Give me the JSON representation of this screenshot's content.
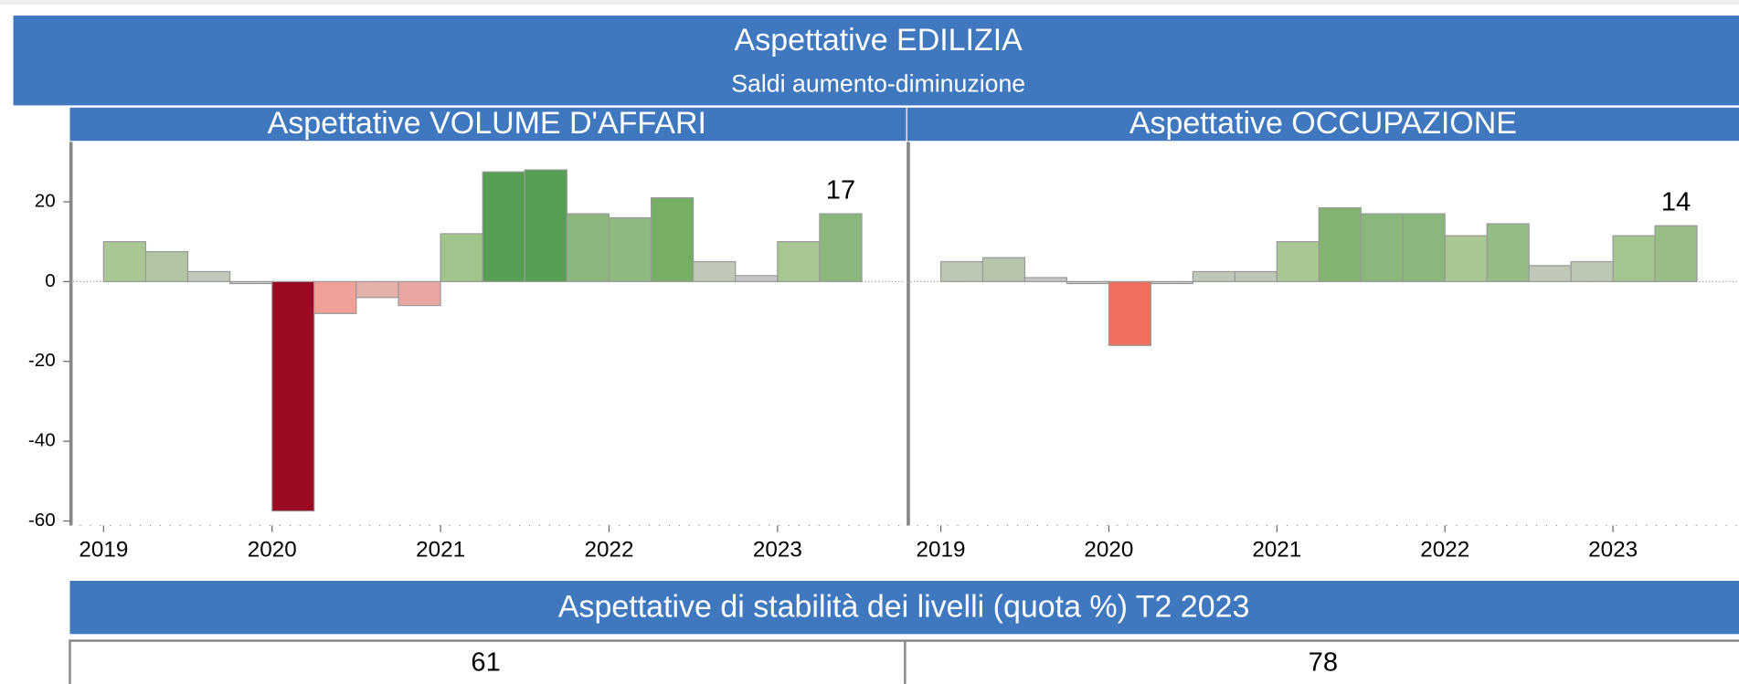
{
  "header": {
    "title": "Aspettative EDILIZIA",
    "subtitle": "Saldi aumento-diminuzione"
  },
  "chart_data": [
    {
      "type": "bar",
      "title": "Aspettative VOLUME D'AFFARI",
      "x": [
        2019,
        2019.25,
        2019.5,
        2019.75,
        2020,
        2020.25,
        2020.5,
        2020.75,
        2021,
        2021.25,
        2021.5,
        2021.75,
        2022,
        2022.25,
        2022.5,
        2022.75,
        2023,
        2023.25
      ],
      "values": [
        10,
        7.5,
        2.5,
        -0.5,
        -57.5,
        -8,
        -4,
        -6,
        12,
        27.5,
        28,
        17,
        16,
        21,
        5,
        1.5,
        10,
        17
      ],
      "colors": [
        "#a9c792",
        "#b3c6a3",
        "#c3c8bd",
        "#c7c7c7",
        "#9b0a23",
        "#f0a097",
        "#e4b1ab",
        "#e8a7a0",
        "#a0c58b",
        "#559e52",
        "#559e52",
        "#8db77b",
        "#8fb97d",
        "#77ae66",
        "#c0c8b8",
        "#c7c7c7",
        "#a9c792",
        "#8ab87a"
      ],
      "xlim": [
        2018.8,
        2023.75
      ],
      "xticks": [
        2019,
        2020,
        2021,
        2022,
        2023
      ],
      "ylim": [
        -60,
        35
      ],
      "yticks": [
        -60,
        -40,
        -20,
        0,
        20
      ]
    },
    {
      "type": "bar",
      "title": "Aspettative OCCUPAZIONE",
      "x": [
        2019,
        2019.25,
        2019.5,
        2019.75,
        2020,
        2020.25,
        2020.5,
        2020.75,
        2021,
        2021.25,
        2021.5,
        2021.75,
        2022,
        2022.25,
        2022.5,
        2022.75,
        2023,
        2023.25
      ],
      "values": [
        5,
        6,
        1,
        -0.5,
        -16,
        -0.5,
        2.5,
        2.5,
        10,
        18.5,
        17,
        17,
        11.5,
        14.5,
        4,
        5,
        11.5,
        14
      ],
      "colors": [
        "#bcc7b4",
        "#b7c5ad",
        "#c7c7c7",
        "#c7c7c7",
        "#ef6f5e",
        "#c7c7c7",
        "#bfc7b8",
        "#bfc7b8",
        "#a9c792",
        "#82b470",
        "#8ab87a",
        "#8ab87a",
        "#a9c792",
        "#94bc83",
        "#c0c8b8",
        "#bcc7b4",
        "#a4c58d",
        "#98be86"
      ],
      "xlim": [
        2018.8,
        2023.75
      ],
      "xticks": [
        2019,
        2020,
        2021,
        2022,
        2023
      ],
      "ylim": [
        -60,
        35
      ]
    }
  ],
  "stability": {
    "title": "Aspettative di stabilità dei livelli (quota %) T2 2023",
    "values": [
      61,
      78
    ]
  }
}
